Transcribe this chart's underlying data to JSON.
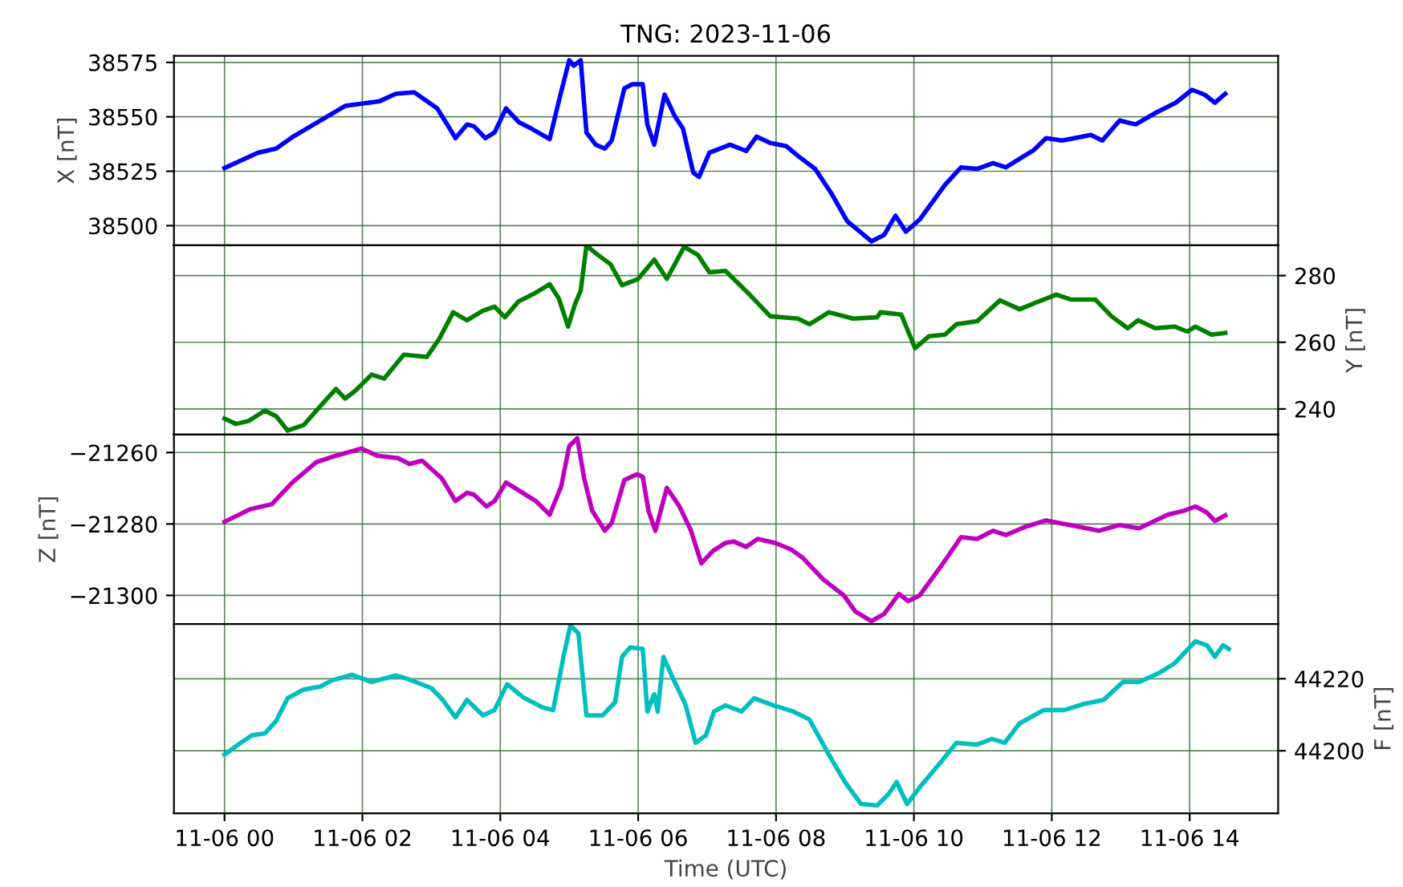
{
  "chart_data": [
    {
      "type": "line",
      "title": "TNG: 2023-11-06",
      "ylabel": "X [nT]",
      "xlim": [
        "2023-11-05T23:16",
        "2023-11-06T15:17"
      ],
      "xticks": [
        {
          "value": "2023-11-06T00:00",
          "label": null
        },
        {
          "value": "2023-11-06T02:00",
          "label": null
        },
        {
          "value": "2023-11-06T04:00",
          "label": null
        },
        {
          "value": "2023-11-06T06:00",
          "label": null
        },
        {
          "value": "2023-11-06T08:00",
          "label": null
        },
        {
          "value": "2023-11-06T10:00",
          "label": null
        },
        {
          "value": "2023-11-06T12:00",
          "label": null
        },
        {
          "value": "2023-11-06T14:00",
          "label": null
        }
      ],
      "ylim": [
        38491,
        38578
      ],
      "yticks": [
        38500,
        38525,
        38550,
        38575
      ],
      "grid": true,
      "tick_labels": "y",
      "series": [
        {
          "color": "#0000ff",
          "x": [
            "2023-11-06T00:00",
            "2023-11-06T00:29",
            "2023-11-06T00:45",
            "2023-11-06T01:00",
            "2023-11-06T01:29",
            "2023-11-06T01:45",
            "2023-11-06T02:15",
            "2023-11-06T02:29",
            "2023-11-06T02:45",
            "2023-11-06T03:05",
            "2023-11-06T03:16",
            "2023-11-06T03:21",
            "2023-11-06T03:31",
            "2023-11-06T03:37",
            "2023-11-06T03:47",
            "2023-11-06T03:55",
            "2023-11-06T04:05",
            "2023-11-06T04:16",
            "2023-11-06T04:27",
            "2023-11-06T04:43",
            "2023-11-06T04:52",
            "2023-11-06T05:00",
            "2023-11-06T05:04",
            "2023-11-06T05:10",
            "2023-11-06T05:15",
            "2023-11-06T05:23",
            "2023-11-06T05:31",
            "2023-11-06T05:37",
            "2023-11-06T05:48",
            "2023-11-06T05:55",
            "2023-11-06T06:04",
            "2023-11-06T06:08",
            "2023-11-06T06:14",
            "2023-11-06T06:23",
            "2023-11-06T06:32",
            "2023-11-06T06:39",
            "2023-11-06T06:48",
            "2023-11-06T06:53",
            "2023-11-06T07:02",
            "2023-11-06T07:20",
            "2023-11-06T07:34",
            "2023-11-06T07:43",
            "2023-11-06T07:55",
            "2023-11-06T08:09",
            "2023-11-06T08:20",
            "2023-11-06T08:34",
            "2023-11-06T08:48",
            "2023-11-06T09:02",
            "2023-11-06T09:13",
            "2023-11-06T09:23",
            "2023-11-06T09:34",
            "2023-11-06T09:44",
            "2023-11-06T09:53",
            "2023-11-06T10:05",
            "2023-11-06T10:27",
            "2023-11-06T10:41",
            "2023-11-06T10:55",
            "2023-11-06T11:09",
            "2023-11-06T11:20",
            "2023-11-06T11:44",
            "2023-11-06T11:55",
            "2023-11-06T12:09",
            "2023-11-06T12:34",
            "2023-11-06T12:44",
            "2023-11-06T12:59",
            "2023-11-06T13:13",
            "2023-11-06T13:31",
            "2023-11-06T13:48",
            "2023-11-06T14:02",
            "2023-11-06T14:13",
            "2023-11-06T14:22",
            "2023-11-06T14:31"
          ],
          "values": [
            38526.5,
            38533.5,
            38535.4,
            38541,
            38550,
            38555,
            38557.2,
            38560.6,
            38561.3,
            38553.9,
            38544.6,
            38540.2,
            38546.5,
            38545.7,
            38540.2,
            38542.8,
            38553.9,
            38547.6,
            38544.6,
            38539.8,
            38559.4,
            38576,
            38573.5,
            38576,
            38542.8,
            38537.2,
            38535.4,
            38539.1,
            38563.1,
            38565,
            38565,
            38546.5,
            38537.2,
            38560.2,
            38550.2,
            38544.6,
            38524.3,
            38522.4,
            38533.5,
            38537.2,
            38534.3,
            38540.9,
            38538,
            38536.5,
            38531.7,
            38526.1,
            38515,
            38502,
            38497.2,
            38492.8,
            38495.7,
            38504.6,
            38497.2,
            38502.8,
            38518.7,
            38526.8,
            38526.1,
            38528.7,
            38526.8,
            38534.6,
            38540.2,
            38539.1,
            38541.7,
            38539.1,
            38548.3,
            38546.5,
            38552,
            38556.5,
            38562.4,
            38560.2,
            38556.5,
            38560.6
          ]
        }
      ]
    },
    {
      "type": "line",
      "y2label": "Y [nT]",
      "xlim": [
        "2023-11-05T23:16",
        "2023-11-06T15:17"
      ],
      "xticks": [
        {
          "value": "2023-11-06T00:00",
          "label": null
        },
        {
          "value": "2023-11-06T02:00",
          "label": null
        },
        {
          "value": "2023-11-06T04:00",
          "label": null
        },
        {
          "value": "2023-11-06T06:00",
          "label": null
        },
        {
          "value": "2023-11-06T08:00",
          "label": null
        },
        {
          "value": "2023-11-06T10:00",
          "label": null
        },
        {
          "value": "2023-11-06T12:00",
          "label": null
        },
        {
          "value": "2023-11-06T14:00",
          "label": null
        }
      ],
      "y2lim": [
        232.3,
        289.1
      ],
      "y2ticks": [
        240,
        260,
        280
      ],
      "grid": true,
      "tick_labels": "y",
      "series": [
        {
          "color": "#008000",
          "axis": "y2",
          "x": [
            "2023-11-06T00:00",
            "2023-11-06T00:10",
            "2023-11-06T00:21",
            "2023-11-06T00:35",
            "2023-11-06T00:45",
            "2023-11-06T00:55",
            "2023-11-06T01:09",
            "2023-11-06T01:23",
            "2023-11-06T01:37",
            "2023-11-06T01:45",
            "2023-11-06T01:54",
            "2023-11-06T02:08",
            "2023-11-06T02:19",
            "2023-11-06T02:36",
            "2023-11-06T02:56",
            "2023-11-06T03:07",
            "2023-11-06T03:19",
            "2023-11-06T03:31",
            "2023-11-06T03:45",
            "2023-11-06T03:55",
            "2023-11-06T04:04",
            "2023-11-06T04:16",
            "2023-11-06T04:30",
            "2023-11-06T04:43",
            "2023-11-06T04:51",
            "2023-11-06T04:59",
            "2023-11-06T05:05",
            "2023-11-06T05:10",
            "2023-11-06T05:15",
            "2023-11-06T05:25",
            "2023-11-06T05:36",
            "2023-11-06T05:46",
            "2023-11-06T06:00",
            "2023-11-06T06:14",
            "2023-11-06T06:25",
            "2023-11-06T06:40",
            "2023-11-06T06:52",
            "2023-11-06T07:02",
            "2023-11-06T07:16",
            "2023-11-06T07:37",
            "2023-11-06T07:55",
            "2023-11-06T08:19",
            "2023-11-06T08:29",
            "2023-11-06T08:46",
            "2023-11-06T09:07",
            "2023-11-06T09:28",
            "2023-11-06T09:31",
            "2023-11-06T09:49",
            "2023-11-06T10:01",
            "2023-11-06T10:13",
            "2023-11-06T10:27",
            "2023-11-06T10:37",
            "2023-11-06T10:55",
            "2023-11-06T11:15",
            "2023-11-06T11:32",
            "2023-11-06T11:46",
            "2023-11-06T12:04",
            "2023-11-06T12:17",
            "2023-11-06T12:38",
            "2023-11-06T12:52",
            "2023-11-06T13:06",
            "2023-11-06T13:15",
            "2023-11-06T13:30",
            "2023-11-06T13:47",
            "2023-11-06T13:58",
            "2023-11-06T14:05",
            "2023-11-06T14:19",
            "2023-11-06T14:31"
          ],
          "values": [
            237.1,
            235.5,
            236.4,
            239.5,
            237.8,
            233.5,
            235.2,
            240.7,
            246,
            243.1,
            245.5,
            250.3,
            249.1,
            256.3,
            255.6,
            261.1,
            269,
            266.6,
            269.5,
            270.7,
            267.5,
            272.3,
            274.7,
            277.4,
            273.1,
            264.7,
            271.4,
            275.5,
            289,
            286.2,
            283.4,
            277.1,
            279,
            284.8,
            279,
            288.6,
            286.2,
            281,
            281.4,
            274.3,
            267.8,
            267.1,
            265.4,
            269,
            267.1,
            267.5,
            269,
            268.3,
            258.2,
            261.8,
            262.3,
            265.4,
            266.3,
            272.6,
            269.9,
            271.9,
            274.3,
            272.8,
            272.8,
            267.8,
            264.2,
            266.6,
            264.2,
            264.7,
            263.2,
            264.7,
            262.3,
            262.8
          ]
        }
      ]
    },
    {
      "type": "line",
      "ylabel": "Z [nT]",
      "xlim": [
        "2023-11-05T23:16",
        "2023-11-06T15:17"
      ],
      "xticks": [
        {
          "value": "2023-11-06T00:00",
          "label": null
        },
        {
          "value": "2023-11-06T02:00",
          "label": null
        },
        {
          "value": "2023-11-06T04:00",
          "label": null
        },
        {
          "value": "2023-11-06T06:00",
          "label": null
        },
        {
          "value": "2023-11-06T08:00",
          "label": null
        },
        {
          "value": "2023-11-06T10:00",
          "label": null
        },
        {
          "value": "2023-11-06T12:00",
          "label": null
        },
        {
          "value": "2023-11-06T14:00",
          "label": null
        }
      ],
      "ylim": [
        -21308,
        -21255
      ],
      "yticks": [
        {
          "value": -21300,
          "label": "−21300"
        },
        {
          "value": -21280,
          "label": "−21280"
        },
        {
          "value": -21260,
          "label": "−21260"
        }
      ],
      "grid": true,
      "tick_labels": "y",
      "series": [
        {
          "color": "#bf00bf",
          "x": [
            "2023-11-06T00:00",
            "2023-11-06T00:23",
            "2023-11-06T00:41",
            "2023-11-06T00:59",
            "2023-11-06T01:20",
            "2023-11-06T01:37",
            "2023-11-06T01:59",
            "2023-11-06T02:13",
            "2023-11-06T02:31",
            "2023-11-06T02:41",
            "2023-11-06T02:52",
            "2023-11-06T03:09",
            "2023-11-06T03:21",
            "2023-11-06T03:31",
            "2023-11-06T03:37",
            "2023-11-06T03:48",
            "2023-11-06T03:55",
            "2023-11-06T04:05",
            "2023-11-06T04:16",
            "2023-11-06T04:31",
            "2023-11-06T04:43",
            "2023-11-06T04:53",
            "2023-11-06T05:00",
            "2023-11-06T05:07",
            "2023-11-06T05:13",
            "2023-11-06T05:20",
            "2023-11-06T05:31",
            "2023-11-06T05:37",
            "2023-11-06T05:48",
            "2023-11-06T05:59",
            "2023-11-06T06:04",
            "2023-11-06T06:09",
            "2023-11-06T06:15",
            "2023-11-06T06:25",
            "2023-11-06T06:36",
            "2023-11-06T06:46",
            "2023-11-06T06:55",
            "2023-11-06T07:05",
            "2023-11-06T07:16",
            "2023-11-06T07:23",
            "2023-11-06T07:34",
            "2023-11-06T07:44",
            "2023-11-06T07:59",
            "2023-11-06T08:13",
            "2023-11-06T08:23",
            "2023-11-06T08:41",
            "2023-11-06T08:59",
            "2023-11-06T09:09",
            "2023-11-06T09:23",
            "2023-11-06T09:34",
            "2023-11-06T09:47",
            "2023-11-06T09:55",
            "2023-11-06T10:05",
            "2023-11-06T10:23",
            "2023-11-06T10:41",
            "2023-11-06T10:55",
            "2023-11-06T11:09",
            "2023-11-06T11:20",
            "2023-11-06T11:37",
            "2023-11-06T11:55",
            "2023-11-06T12:16",
            "2023-11-06T12:41",
            "2023-11-06T12:59",
            "2023-11-06T13:16",
            "2023-11-06T13:41",
            "2023-11-06T13:55",
            "2023-11-06T14:05",
            "2023-11-06T14:15",
            "2023-11-06T14:22",
            "2023-11-06T14:31"
          ],
          "values": [
            -21279.4,
            -21275.8,
            -21274.5,
            -21268.4,
            -21262.7,
            -21260.9,
            -21258.9,
            -21260.9,
            -21261.6,
            -21263.2,
            -21262.3,
            -21267.2,
            -21273.6,
            -21271.3,
            -21271.8,
            -21275.1,
            -21273.6,
            -21268.4,
            -21270.6,
            -21273.6,
            -21277.4,
            -21269.5,
            -21258.2,
            -21256,
            -21267.2,
            -21276.3,
            -21281.9,
            -21279.7,
            -21267.7,
            -21266.1,
            -21266.8,
            -21276.3,
            -21281.9,
            -21269.9,
            -21275.1,
            -21281.9,
            -21291,
            -21287.6,
            -21285.3,
            -21284.9,
            -21286.4,
            -21284.2,
            -21285.3,
            -21287.1,
            -21289.4,
            -21295.5,
            -21300,
            -21304.5,
            -21307.2,
            -21305.2,
            -21299.6,
            -21301.6,
            -21300,
            -21292.1,
            -21283.7,
            -21284.2,
            -21281.9,
            -21283.1,
            -21280.8,
            -21279,
            -21280.3,
            -21281.9,
            -21280.3,
            -21281.2,
            -21277.4,
            -21276.3,
            -21275.1,
            -21276.8,
            -21279.2,
            -21277.6
          ]
        }
      ]
    },
    {
      "type": "line",
      "xlabel": "Time (UTC)",
      "y2label": "F [nT]",
      "xlim": [
        "2023-11-05T23:16",
        "2023-11-06T15:17"
      ],
      "xticks": [
        {
          "value": "2023-11-06T00:00",
          "label": "11-06 00"
        },
        {
          "value": "2023-11-06T02:00",
          "label": "11-06 02"
        },
        {
          "value": "2023-11-06T04:00",
          "label": "11-06 04"
        },
        {
          "value": "2023-11-06T06:00",
          "label": "11-06 06"
        },
        {
          "value": "2023-11-06T08:00",
          "label": "11-06 08"
        },
        {
          "value": "2023-11-06T10:00",
          "label": "11-06 10"
        },
        {
          "value": "2023-11-06T12:00",
          "label": "11-06 12"
        },
        {
          "value": "2023-11-06T14:00",
          "label": "11-06 14"
        }
      ],
      "y2lim": [
        44182.6,
        44235.2
      ],
      "y2ticks": [
        44200,
        44220
      ],
      "grid": true,
      "series": [
        {
          "color": "#00bfbf",
          "axis": "y2",
          "x": [
            "2023-11-06T00:00",
            "2023-11-06T00:14",
            "2023-11-06T00:24",
            "2023-11-06T00:35",
            "2023-11-06T00:45",
            "2023-11-06T00:55",
            "2023-11-06T01:09",
            "2023-11-06T01:23",
            "2023-11-06T01:34",
            "2023-11-06T01:51",
            "2023-11-06T02:08",
            "2023-11-06T02:29",
            "2023-11-06T02:39",
            "2023-11-06T03:00",
            "2023-11-06T03:10",
            "2023-11-06T03:21",
            "2023-11-06T03:31",
            "2023-11-06T03:45",
            "2023-11-06T03:55",
            "2023-11-06T04:06",
            "2023-11-06T04:20",
            "2023-11-06T04:37",
            "2023-11-06T04:46",
            "2023-11-06T04:55",
            "2023-11-06T05:01",
            "2023-11-06T05:08",
            "2023-11-06T05:15",
            "2023-11-06T05:29",
            "2023-11-06T05:40",
            "2023-11-06T05:46",
            "2023-11-06T05:53",
            "2023-11-06T06:04",
            "2023-11-06T06:08",
            "2023-11-06T06:14",
            "2023-11-06T06:17",
            "2023-11-06T06:22",
            "2023-11-06T06:31",
            "2023-11-06T06:41",
            "2023-11-06T06:50",
            "2023-11-06T06:59",
            "2023-11-06T07:06",
            "2023-11-06T07:16",
            "2023-11-06T07:30",
            "2023-11-06T07:41",
            "2023-11-06T07:58",
            "2023-11-06T08:15",
            "2023-11-06T08:29",
            "2023-11-06T08:46",
            "2023-11-06T09:00",
            "2023-11-06T09:14",
            "2023-11-06T09:28",
            "2023-11-06T09:38",
            "2023-11-06T09:45",
            "2023-11-06T09:54",
            "2023-11-06T10:06",
            "2023-11-06T10:23",
            "2023-11-06T10:37",
            "2023-11-06T10:55",
            "2023-11-06T11:08",
            "2023-11-06T11:19",
            "2023-11-06T11:32",
            "2023-11-06T11:53",
            "2023-11-06T12:11",
            "2023-11-06T12:28",
            "2023-11-06T12:45",
            "2023-11-06T13:02",
            "2023-11-06T13:16",
            "2023-11-06T13:34",
            "2023-11-06T13:47",
            "2023-11-06T14:05",
            "2023-11-06T14:15",
            "2023-11-06T14:22",
            "2023-11-06T14:29",
            "2023-11-06T14:34"
          ],
          "values": [
            44198.9,
            44202.2,
            44204.3,
            44204.8,
            44208.3,
            44214.6,
            44217,
            44217.8,
            44219.6,
            44221.1,
            44219.1,
            44220.9,
            44220,
            44217.4,
            44214.1,
            44209.3,
            44214.1,
            44209.8,
            44211.3,
            44218.5,
            44214.8,
            44212,
            44211.3,
            44226.1,
            44234.8,
            44232.6,
            44209.8,
            44209.8,
            44213.5,
            44226.1,
            44228.7,
            44228.3,
            44210.9,
            44215.7,
            44210.9,
            44226.1,
            44219.6,
            44213,
            44202.2,
            44204.3,
            44210.9,
            44212.6,
            44210.9,
            44214.6,
            44212.6,
            44210.9,
            44208.7,
            44198.9,
            44191.3,
            44185.2,
            44184.8,
            44188,
            44191.3,
            44185.2,
            44190.2,
            44196.7,
            44202.2,
            44201.7,
            44203.3,
            44202.2,
            44207.6,
            44211.3,
            44211.3,
            44213,
            44214.1,
            44219.1,
            44219.1,
            44221.7,
            44224.3,
            44230.4,
            44229.3,
            44226.1,
            44229.3,
            44228.3
          ]
        }
      ]
    }
  ]
}
